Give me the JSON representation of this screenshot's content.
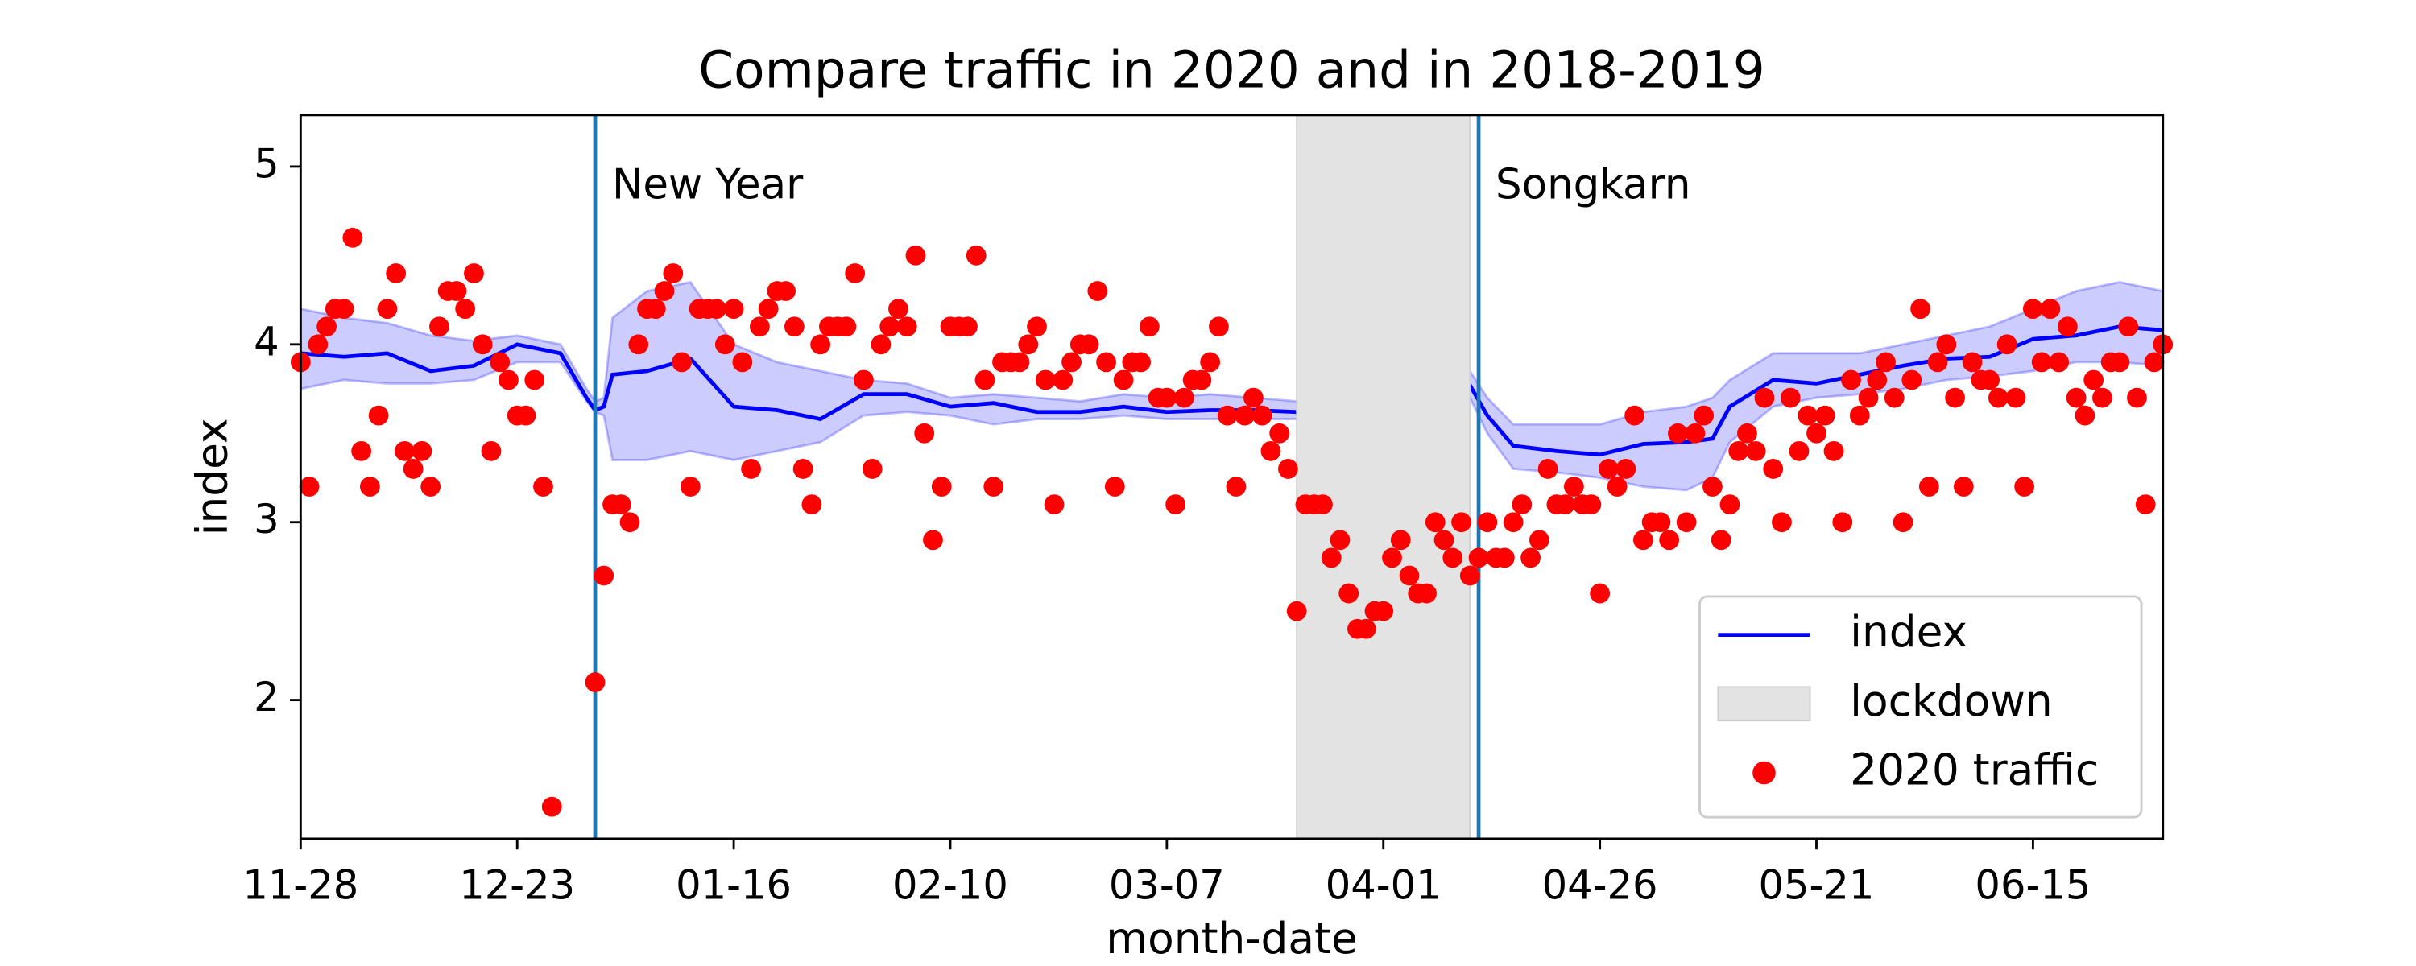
{
  "chart_data": {
    "type": "line",
    "title": "Compare traffic in 2020 and in 2018-2019",
    "x_label": "month-date",
    "y_label": "index",
    "xlim": [
      0,
      215
    ],
    "ylim": [
      1.22,
      5.29
    ],
    "xticks": [
      {
        "value": 0,
        "label": "11-28"
      },
      {
        "value": 25,
        "label": "12-23"
      },
      {
        "value": 50,
        "label": "01-16"
      },
      {
        "value": 75,
        "label": "02-10"
      },
      {
        "value": 100,
        "label": "03-07"
      },
      {
        "value": 125,
        "label": "04-01"
      },
      {
        "value": 150,
        "label": "04-26"
      },
      {
        "value": 175,
        "label": "05-21"
      },
      {
        "value": 200,
        "label": "06-15"
      }
    ],
    "yticks": [
      2,
      3,
      4,
      5
    ],
    "legend": "lower right",
    "annotations": [
      {
        "label": "New Year",
        "x": 34,
        "color": "#1f77b4"
      },
      {
        "label": "Songkarn",
        "x": 136,
        "color": "#1f77b4"
      }
    ],
    "series": [
      {
        "name": "index",
        "color": "#0000ff",
        "x": [
          0,
          5,
          10,
          15,
          20,
          25,
          30,
          33,
          34,
          35,
          36,
          40,
          45,
          50,
          55,
          60,
          65,
          70,
          75,
          80,
          85,
          90,
          95,
          100,
          105,
          110,
          115,
          120,
          125,
          130,
          133,
          135,
          137,
          140,
          145,
          150,
          155,
          160,
          163,
          165,
          170,
          175,
          180,
          185,
          190,
          195,
          200,
          205,
          210,
          215
        ],
        "values": [
          3.95,
          3.93,
          3.95,
          3.85,
          3.88,
          4.0,
          3.95,
          3.7,
          3.63,
          3.65,
          3.83,
          3.85,
          3.92,
          3.65,
          3.63,
          3.58,
          3.72,
          3.72,
          3.65,
          3.67,
          3.62,
          3.62,
          3.65,
          3.62,
          3.63,
          3.63,
          3.62,
          3.65,
          3.66,
          3.72,
          3.72,
          3.77,
          3.6,
          3.43,
          3.4,
          3.38,
          3.44,
          3.45,
          3.47,
          3.65,
          3.8,
          3.78,
          3.83,
          3.88,
          3.92,
          3.93,
          4.03,
          4.05,
          4.1,
          4.08
        ],
        "lower": [
          3.75,
          3.8,
          3.78,
          3.78,
          3.8,
          3.9,
          3.9,
          3.68,
          3.62,
          3.6,
          3.35,
          3.35,
          3.4,
          3.35,
          3.4,
          3.45,
          3.6,
          3.62,
          3.6,
          3.55,
          3.58,
          3.58,
          3.6,
          3.58,
          3.58,
          3.58,
          3.58,
          3.6,
          3.62,
          3.65,
          3.68,
          3.7,
          3.5,
          3.3,
          3.28,
          3.25,
          3.2,
          3.18,
          3.25,
          3.45,
          3.65,
          3.7,
          3.72,
          3.75,
          3.8,
          3.82,
          3.85,
          3.9,
          3.9,
          3.88
        ],
        "upper": [
          4.2,
          4.15,
          4.12,
          4.05,
          4.02,
          4.05,
          4.0,
          3.75,
          3.68,
          3.7,
          4.15,
          4.3,
          4.35,
          4.0,
          3.9,
          3.85,
          3.8,
          3.78,
          3.7,
          3.72,
          3.7,
          3.68,
          3.72,
          3.7,
          3.72,
          3.7,
          3.68,
          3.7,
          3.72,
          3.8,
          3.82,
          3.85,
          3.7,
          3.55,
          3.55,
          3.55,
          3.62,
          3.65,
          3.7,
          3.8,
          3.95,
          3.95,
          3.95,
          4.0,
          4.05,
          4.1,
          4.2,
          4.3,
          4.35,
          4.3
        ]
      },
      {
        "name": "lockdown",
        "color": "#e3e3e3",
        "span": [
          115,
          135
        ]
      },
      {
        "name": "2020 traffic",
        "color": "#ff0000",
        "x": [
          0,
          1,
          2,
          3,
          4,
          5,
          6,
          7,
          8,
          9,
          10,
          11,
          12,
          13,
          14,
          15,
          16,
          17,
          18,
          19,
          20,
          21,
          22,
          23,
          24,
          25,
          26,
          27,
          28,
          29,
          34,
          35,
          36,
          37,
          38,
          39,
          40,
          41,
          42,
          43,
          44,
          45,
          46,
          47,
          48,
          49,
          50,
          51,
          52,
          53,
          54,
          55,
          56,
          57,
          58,
          59,
          60,
          61,
          62,
          63,
          64,
          65,
          66,
          67,
          68,
          69,
          70,
          71,
          72,
          73,
          74,
          75,
          76,
          77,
          78,
          79,
          80,
          81,
          82,
          83,
          84,
          85,
          86,
          87,
          88,
          89,
          90,
          91,
          92,
          93,
          94,
          95,
          96,
          97,
          98,
          99,
          100,
          101,
          102,
          103,
          104,
          105,
          106,
          107,
          108,
          109,
          110,
          111,
          112,
          113,
          114,
          115,
          116,
          117,
          118,
          119,
          120,
          121,
          122,
          123,
          124,
          125,
          126,
          127,
          128,
          129,
          130,
          131,
          132,
          133,
          134,
          135,
          136,
          137,
          138,
          139,
          140,
          141,
          142,
          143,
          144,
          145,
          146,
          147,
          148,
          149,
          150,
          151,
          152,
          153,
          154,
          155,
          156,
          157,
          158,
          159,
          160,
          161,
          162,
          163,
          164,
          165,
          166,
          167,
          168,
          169,
          170,
          171,
          172,
          173,
          174,
          175,
          176,
          177,
          178,
          179,
          180,
          181,
          182,
          183,
          184,
          185,
          186,
          187,
          188,
          189,
          190,
          191,
          192,
          193,
          194,
          195,
          196,
          197,
          198,
          199,
          200,
          201,
          202,
          203,
          204,
          205,
          206,
          207,
          208,
          209,
          210,
          211,
          212,
          213,
          214,
          215
        ],
        "values": [
          3.9,
          3.2,
          4.0,
          4.1,
          4.2,
          4.2,
          4.6,
          3.4,
          3.2,
          3.6,
          4.2,
          4.4,
          3.4,
          3.3,
          3.4,
          3.2,
          4.1,
          4.3,
          4.3,
          4.2,
          4.4,
          4.0,
          3.4,
          3.9,
          3.8,
          3.6,
          3.6,
          3.8,
          3.2,
          1.4,
          2.1,
          2.7,
          3.1,
          3.1,
          3.0,
          4.0,
          4.2,
          4.2,
          4.3,
          4.4,
          3.9,
          3.2,
          4.2,
          4.2,
          4.2,
          4.0,
          4.2,
          3.9,
          3.3,
          4.1,
          4.2,
          4.3,
          4.3,
          4.1,
          3.3,
          3.1,
          4.0,
          4.1,
          4.1,
          4.1,
          4.4,
          3.8,
          3.3,
          4.0,
          4.1,
          4.2,
          4.1,
          4.5,
          3.5,
          2.9,
          3.2,
          4.1,
          4.1,
          4.1,
          4.5,
          3.8,
          3.2,
          3.9,
          3.9,
          3.9,
          4.0,
          4.1,
          3.8,
          3.1,
          3.8,
          3.9,
          4.0,
          4.0,
          4.3,
          3.9,
          3.2,
          3.8,
          3.9,
          3.9,
          4.1,
          3.7,
          3.7,
          3.1,
          3.7,
          3.8,
          3.8,
          3.9,
          4.1,
          3.6,
          3.2,
          3.6,
          3.7,
          3.6,
          3.4,
          3.5,
          3.3,
          2.5,
          3.1,
          3.1,
          3.1,
          2.8,
          2.9,
          2.6,
          2.4,
          2.4,
          2.5,
          2.5,
          2.8,
          2.9,
          2.7,
          2.6,
          2.6,
          3.0,
          2.9,
          2.8,
          3.0,
          2.7,
          2.8,
          3.0,
          2.8,
          2.8,
          3.0,
          3.1,
          2.8,
          2.9,
          3.3,
          3.1,
          3.1,
          3.2,
          3.1,
          3.1,
          2.6,
          3.3,
          3.2,
          3.3,
          3.6,
          2.9,
          3.0,
          3.0,
          2.9,
          3.5,
          3.0,
          3.5,
          3.6,
          3.2,
          2.9,
          3.1,
          3.4,
          3.5,
          3.4,
          3.7,
          3.3,
          3.0,
          3.7,
          3.4,
          3.6,
          3.5,
          3.6,
          3.4,
          3.0,
          3.8,
          3.6,
          3.7,
          3.8,
          3.9,
          3.7,
          3.0,
          3.8,
          4.2,
          3.2,
          3.9,
          4.0,
          3.7,
          3.2,
          3.9,
          3.8,
          3.8,
          3.7,
          4.0,
          3.7,
          3.2,
          4.2,
          3.9,
          4.2,
          3.9,
          4.1,
          3.7,
          3.6,
          3.8,
          3.7,
          3.9,
          3.9,
          4.1,
          3.7,
          3.1,
          3.9,
          4.0
        ]
      }
    ]
  }
}
